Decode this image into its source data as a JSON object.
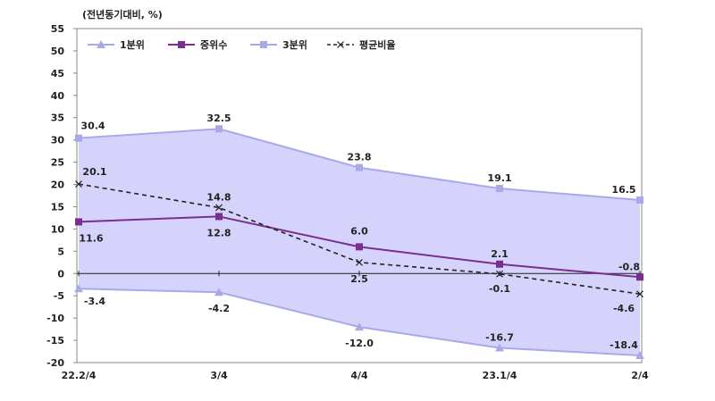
{
  "chart_data": {
    "type": "line",
    "unit_label": "(전년동기대비, %)",
    "categories": [
      "22.2/4",
      "3/4",
      "4/4",
      "23.1/4",
      "2/4"
    ],
    "ylim": [
      -20,
      55
    ],
    "yticks": [
      55,
      50,
      45,
      40,
      35,
      30,
      25,
      20,
      15,
      10,
      5,
      0,
      -5,
      -10,
      -15,
      -20
    ],
    "legend_position": "top-left",
    "band_fill": true,
    "series": [
      {
        "name": "1분위",
        "values": [
          -3.4,
          -4.2,
          -12.0,
          -16.7,
          -18.4
        ],
        "color": "#a9a9e8",
        "marker": "triangle",
        "labels": [
          "-3.4",
          "-4.2",
          "-12.0",
          "-16.7",
          "-18.4"
        ]
      },
      {
        "name": "중위수",
        "values": [
          11.6,
          12.8,
          6.0,
          2.1,
          -0.8
        ],
        "color": "#7a2f8f",
        "marker": "square",
        "labels": [
          "11.6",
          "12.8",
          "6.0",
          "2.1",
          "-0.8"
        ]
      },
      {
        "name": "3분위",
        "values": [
          30.4,
          32.5,
          23.8,
          19.1,
          16.5
        ],
        "color": "#a9a9e8",
        "marker": "square",
        "labels": [
          "30.4",
          "32.5",
          "23.8",
          "19.1",
          "16.5"
        ]
      },
      {
        "name": "평균비율",
        "values": [
          20.1,
          14.8,
          2.5,
          -0.1,
          -4.6
        ],
        "color": "#222222",
        "marker": "x",
        "dashed": true,
        "labels": [
          "20.1",
          "14.8",
          "2.5",
          "-0.1",
          "-4.6"
        ]
      }
    ],
    "colors": {
      "band": "#d5d3fb",
      "grid_frame": "#888888",
      "zero_line": "#222222"
    }
  }
}
